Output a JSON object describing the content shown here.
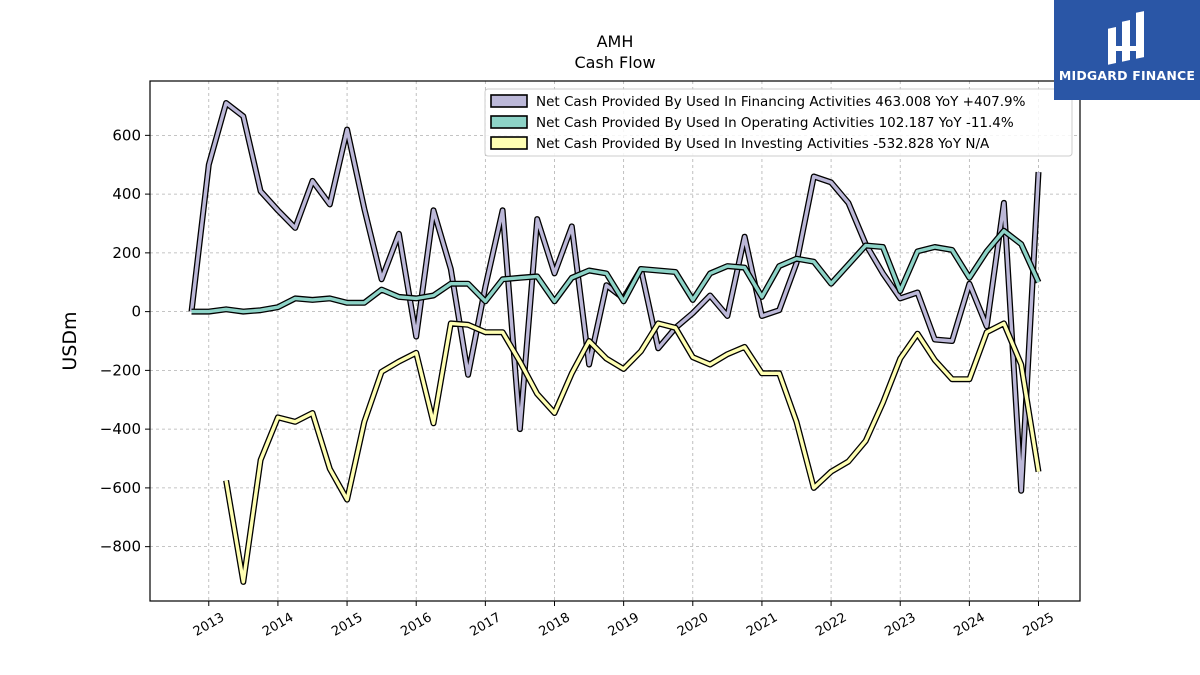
{
  "chart_data": {
    "type": "line",
    "title": "AMH",
    "subtitle": "Cash Flow",
    "xlabel": "",
    "ylabel": "USDm",
    "xlim": [
      2012.15,
      2025.6
    ],
    "ylim": [
      -985,
      785
    ],
    "yticks": [
      -800,
      -600,
      -400,
      -200,
      0,
      200,
      400,
      600
    ],
    "xticks": [
      2013,
      2014,
      2015,
      2016,
      2017,
      2018,
      2019,
      2020,
      2021,
      2022,
      2023,
      2024,
      2025
    ],
    "grid": true,
    "legend_position": "top-right",
    "series": [
      {
        "name": "Net Cash Provided By Used In Financing Activities  463.008 YoY +407.9%",
        "color": "#bcb8d8",
        "points": [
          [
            2012.75,
            0
          ],
          [
            2013.0,
            500
          ],
          [
            2013.25,
            710
          ],
          [
            2013.5,
            665
          ],
          [
            2013.75,
            410
          ],
          [
            2014.0,
            345
          ],
          [
            2014.25,
            285
          ],
          [
            2014.5,
            445
          ],
          [
            2014.75,
            365
          ],
          [
            2015.0,
            620
          ],
          [
            2015.25,
            350
          ],
          [
            2015.5,
            110
          ],
          [
            2015.75,
            265
          ],
          [
            2016.0,
            -85
          ],
          [
            2016.25,
            345
          ],
          [
            2016.5,
            145
          ],
          [
            2016.75,
            -215
          ],
          [
            2017.0,
            85
          ],
          [
            2017.25,
            345
          ],
          [
            2017.5,
            -400
          ],
          [
            2017.75,
            315
          ],
          [
            2018.0,
            130
          ],
          [
            2018.25,
            290
          ],
          [
            2018.5,
            -180
          ],
          [
            2018.75,
            90
          ],
          [
            2019.0,
            45
          ],
          [
            2019.25,
            145
          ],
          [
            2019.5,
            -125
          ],
          [
            2019.75,
            -55
          ],
          [
            2020.0,
            -5
          ],
          [
            2020.25,
            55
          ],
          [
            2020.5,
            -15
          ],
          [
            2020.75,
            255
          ],
          [
            2021.0,
            -15
          ],
          [
            2021.25,
            5
          ],
          [
            2021.5,
            165
          ],
          [
            2021.75,
            460
          ],
          [
            2022.0,
            440
          ],
          [
            2022.25,
            370
          ],
          [
            2022.5,
            230
          ],
          [
            2022.75,
            130
          ],
          [
            2023.0,
            45
          ],
          [
            2023.25,
            65
          ],
          [
            2023.5,
            -95
          ],
          [
            2023.75,
            -100
          ],
          [
            2024.0,
            95
          ],
          [
            2024.25,
            -50
          ],
          [
            2024.5,
            370
          ],
          [
            2024.75,
            -610
          ],
          [
            2025.0,
            475
          ]
        ]
      },
      {
        "name": "Net Cash Provided By Used In Operating Activities  102.187 YoY -11.4%",
        "color": "#8dd3c7",
        "points": [
          [
            2012.75,
            0
          ],
          [
            2013.0,
            0
          ],
          [
            2013.25,
            8
          ],
          [
            2013.5,
            0
          ],
          [
            2013.75,
            5
          ],
          [
            2014.0,
            15
          ],
          [
            2014.25,
            45
          ],
          [
            2014.5,
            40
          ],
          [
            2014.75,
            45
          ],
          [
            2015.0,
            30
          ],
          [
            2015.25,
            30
          ],
          [
            2015.5,
            75
          ],
          [
            2015.75,
            50
          ],
          [
            2016.0,
            45
          ],
          [
            2016.25,
            55
          ],
          [
            2016.5,
            95
          ],
          [
            2016.75,
            95
          ],
          [
            2017.0,
            35
          ],
          [
            2017.25,
            110
          ],
          [
            2017.5,
            115
          ],
          [
            2017.75,
            120
          ],
          [
            2018.0,
            35
          ],
          [
            2018.25,
            115
          ],
          [
            2018.5,
            140
          ],
          [
            2018.75,
            130
          ],
          [
            2019.0,
            35
          ],
          [
            2019.25,
            145
          ],
          [
            2019.5,
            140
          ],
          [
            2019.75,
            135
          ],
          [
            2020.0,
            40
          ],
          [
            2020.25,
            130
          ],
          [
            2020.5,
            155
          ],
          [
            2020.75,
            150
          ],
          [
            2021.0,
            50
          ],
          [
            2021.25,
            155
          ],
          [
            2021.5,
            180
          ],
          [
            2021.75,
            170
          ],
          [
            2022.0,
            95
          ],
          [
            2022.25,
            160
          ],
          [
            2022.5,
            225
          ],
          [
            2022.75,
            220
          ],
          [
            2023.0,
            70
          ],
          [
            2023.25,
            205
          ],
          [
            2023.5,
            220
          ],
          [
            2023.75,
            210
          ],
          [
            2024.0,
            115
          ],
          [
            2024.25,
            205
          ],
          [
            2024.5,
            275
          ],
          [
            2024.75,
            230
          ],
          [
            2025.0,
            100
          ]
        ]
      },
      {
        "name": "Net Cash Provided By Used In Investing Activities  -532.828 YoY N/A",
        "color": "#ffffb3",
        "points": [
          [
            2013.25,
            -575
          ],
          [
            2013.5,
            -920
          ],
          [
            2013.75,
            -505
          ],
          [
            2014.0,
            -360
          ],
          [
            2014.25,
            -375
          ],
          [
            2014.5,
            -345
          ],
          [
            2014.75,
            -535
          ],
          [
            2015.0,
            -640
          ],
          [
            2015.25,
            -375
          ],
          [
            2015.5,
            -205
          ],
          [
            2015.75,
            -170
          ],
          [
            2016.0,
            -140
          ],
          [
            2016.25,
            -380
          ],
          [
            2016.5,
            -40
          ],
          [
            2016.75,
            -45
          ],
          [
            2017.0,
            -70
          ],
          [
            2017.25,
            -70
          ],
          [
            2017.5,
            -170
          ],
          [
            2017.75,
            -280
          ],
          [
            2018.0,
            -345
          ],
          [
            2018.25,
            -210
          ],
          [
            2018.5,
            -100
          ],
          [
            2018.75,
            -160
          ],
          [
            2019.0,
            -195
          ],
          [
            2019.25,
            -135
          ],
          [
            2019.5,
            -40
          ],
          [
            2019.75,
            -55
          ],
          [
            2020.0,
            -155
          ],
          [
            2020.25,
            -180
          ],
          [
            2020.5,
            -145
          ],
          [
            2020.75,
            -120
          ],
          [
            2021.0,
            -210
          ],
          [
            2021.25,
            -210
          ],
          [
            2021.5,
            -375
          ],
          [
            2021.75,
            -600
          ],
          [
            2022.0,
            -545
          ],
          [
            2022.25,
            -510
          ],
          [
            2022.5,
            -440
          ],
          [
            2022.75,
            -310
          ],
          [
            2023.0,
            -160
          ],
          [
            2023.25,
            -75
          ],
          [
            2023.5,
            -165
          ],
          [
            2023.75,
            -230
          ],
          [
            2024.0,
            -230
          ],
          [
            2024.25,
            -70
          ],
          [
            2024.5,
            -40
          ],
          [
            2024.75,
            -180
          ],
          [
            2025.0,
            -545
          ]
        ]
      }
    ]
  },
  "logo": {
    "text": "MIDGARD FINANCE",
    "color": "#2a56a6"
  }
}
